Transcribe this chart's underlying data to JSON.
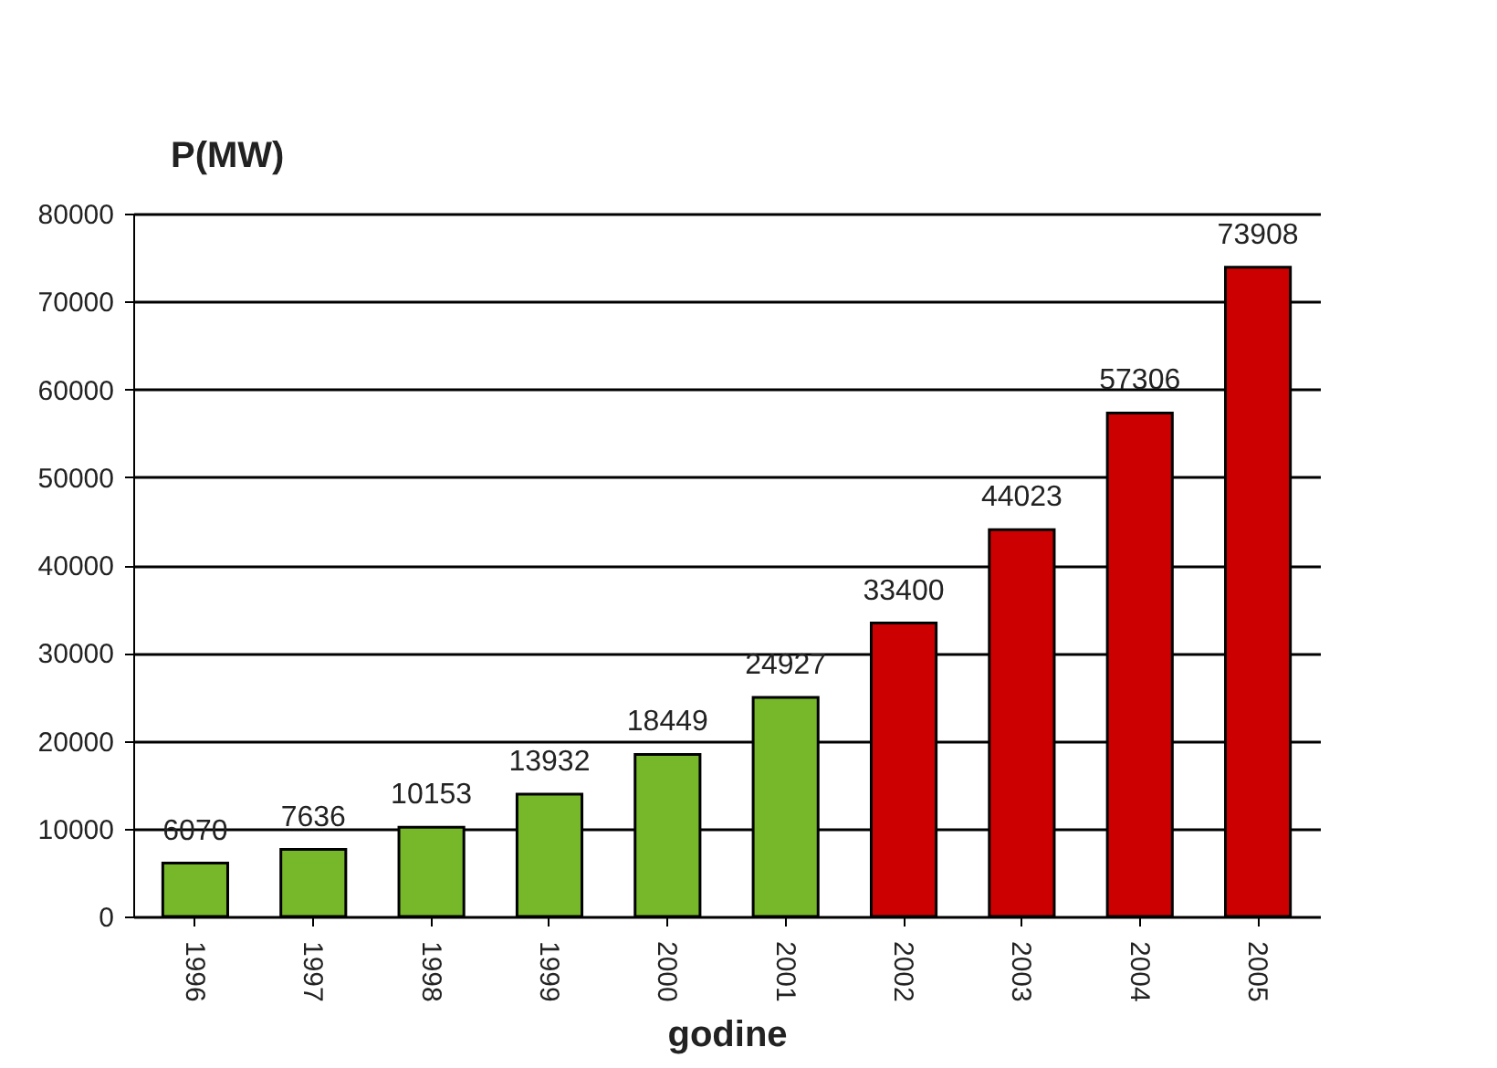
{
  "chart_data": {
    "type": "bar",
    "xlabel": "godine",
    "ylabel": "P(MW)",
    "categories": [
      "1996",
      "1997",
      "1998",
      "1999",
      "2000",
      "2001",
      "2002",
      "2003",
      "2004",
      "2005"
    ],
    "values": [
      6070,
      7636,
      10153,
      13932,
      18449,
      24927,
      33400,
      44023,
      57306,
      73908
    ],
    "colors": [
      "#77b82a",
      "#77b82a",
      "#77b82a",
      "#77b82a",
      "#77b82a",
      "#77b82a",
      "#cc0000",
      "#cc0000",
      "#cc0000",
      "#cc0000"
    ],
    "ylim": [
      0,
      80000
    ],
    "yticks": [
      0,
      10000,
      20000,
      30000,
      40000,
      50000,
      60000,
      70000,
      80000
    ],
    "grid": "y",
    "data_labels": true
  }
}
